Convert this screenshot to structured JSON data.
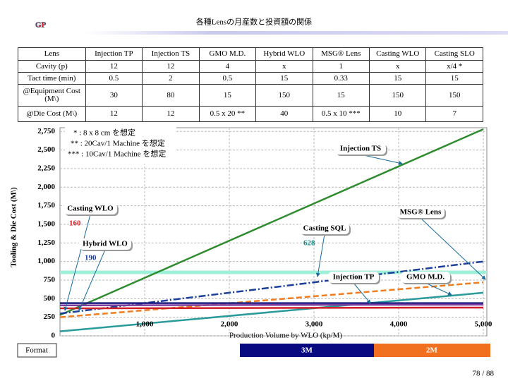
{
  "header": {
    "logo": "GP",
    "title": "各種Lensの月産数と投資額の関係"
  },
  "table": {
    "header": [
      "Lens",
      "Injection TP",
      "Injection TS",
      "GMO M.D.",
      "Hybrid WLO",
      "MSG® Lens",
      "Casting WLO",
      "Casting SLO"
    ],
    "rows": [
      [
        "Cavity (p)",
        "12",
        "12",
        "4",
        "x",
        "1",
        "x",
        "x/4 *"
      ],
      [
        "Tact time (min)",
        "0.5",
        "2",
        "0.5",
        "15",
        "0.33",
        "15",
        "15"
      ],
      [
        "@Equipment Cost (M\\)",
        "30",
        "80",
        "15",
        "150",
        "15",
        "150",
        "150"
      ],
      [
        "@Die Cost (M\\)",
        "12",
        "12",
        "0.5 x 20 **",
        "40",
        "0.5 x 10 ***",
        "10",
        "7"
      ]
    ]
  },
  "chart_data": {
    "type": "line",
    "xlabel": "Production Volume by WLO (kp/M)",
    "ylabel": "Tooling & Die Cost (M\\)",
    "notes": [
      "* : 8 x  8 cm を想定",
      "** : 20Cav/1 Machine を想定",
      "*** : 10Cav/1 Machine を想定"
    ],
    "x": [
      0,
      5000
    ],
    "xlim": [
      0,
      5000
    ],
    "ylim": [
      0,
      2800
    ],
    "xticks": [
      {
        "value": 1000,
        "label": "1,000"
      },
      {
        "value": 2000,
        "label": "2,000"
      },
      {
        "value": 3000,
        "label": "3,000"
      },
      {
        "value": 4000,
        "label": "4,000"
      },
      {
        "value": 5000,
        "label": "5,000"
      }
    ],
    "yticks": [
      0,
      250,
      500,
      750,
      {
        "value": 1000,
        "label": "1,000"
      },
      {
        "value": 1250,
        "label": "1,250"
      },
      {
        "value": 1500,
        "label": "1,500"
      },
      {
        "value": 1750,
        "label": "1,750"
      },
      {
        "value": 2000,
        "label": "2,000"
      },
      {
        "value": 2250,
        "label": "2,250"
      },
      {
        "value": 2500,
        "label": "2,500"
      },
      {
        "value": 2750,
        "label": "2,750"
      }
    ],
    "grid": true,
    "series": [
      {
        "name": "Injection TS",
        "color": "#2e8b2e",
        "dash": "solid",
        "values": [
          280,
          2780
        ]
      },
      {
        "name": "Casting WLO",
        "color": "#f07d20",
        "dash": "dash",
        "values": [
          250,
          720
        ]
      },
      {
        "name": "Hybrid WLO",
        "color": "#1c3f9c",
        "dash": "dashdot",
        "values": [
          300,
          1000
        ]
      },
      {
        "name": "Casting SQL",
        "color": "#2a9a9a",
        "dash": "solid",
        "values": [
          60,
          580
        ]
      },
      {
        "name": "MSG® Lens",
        "color": "#d0202a",
        "dash": "solid",
        "values": [
          370,
          380
        ]
      },
      {
        "name": "Injection TP",
        "color": "#1a1a80",
        "dash": "solid",
        "values": [
          440,
          440
        ]
      },
      {
        "name": "GMO M.D.",
        "color": "#7a3aa0",
        "dash": "solid",
        "values": [
          410,
          420
        ]
      }
    ],
    "annotations": [
      {
        "text": "Injection TS"
      },
      {
        "text": "Casting WLO",
        "value": 160
      },
      {
        "text": "Hybrid WLO",
        "value": 190
      },
      {
        "text": "Casting SQL",
        "value": 628
      },
      {
        "text": "MSG® Lens"
      },
      {
        "text": "Injection TP"
      },
      {
        "text": "GMO M.D."
      }
    ]
  },
  "footer": {
    "format": "Format",
    "bars": [
      "3M",
      "2M"
    ],
    "page": "78 / 88"
  }
}
